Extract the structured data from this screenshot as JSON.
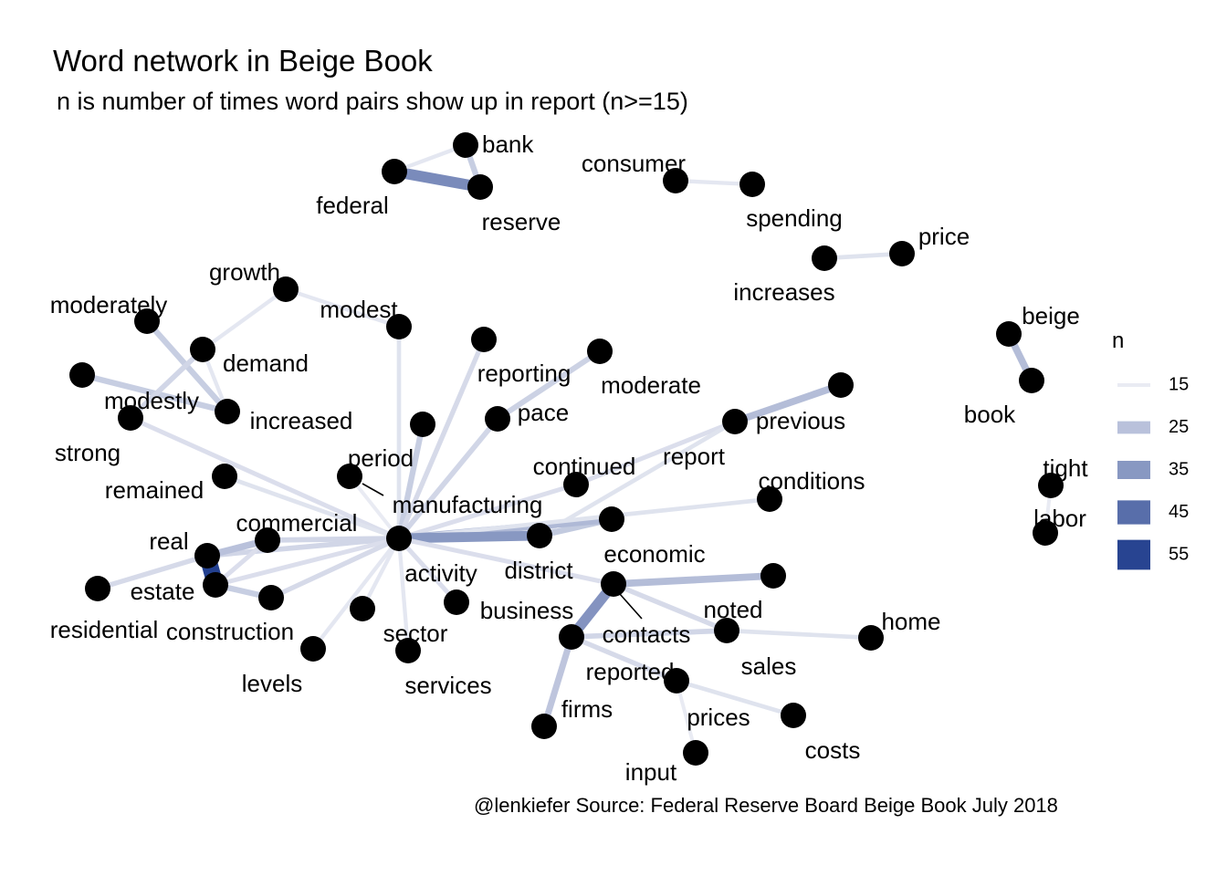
{
  "title": "Word network in Beige Book",
  "subtitle": "n is number of times word pairs show up in report (n>=15)",
  "caption": "@lenkiefer Source: Federal Reserve Board Beige Book July 2018",
  "legend": {
    "title": "n",
    "entries": [
      15,
      25,
      35,
      45,
      55
    ],
    "color_low": "#e9ebf3",
    "color_high": "#23408f"
  },
  "nodes": [
    {
      "id": "bank"
    },
    {
      "id": "federal"
    },
    {
      "id": "reserve"
    },
    {
      "id": "consumer"
    },
    {
      "id": "spending"
    },
    {
      "id": "increases"
    },
    {
      "id": "price"
    },
    {
      "id": "beige"
    },
    {
      "id": "book"
    },
    {
      "id": "tight"
    },
    {
      "id": "labor"
    },
    {
      "id": "growth"
    },
    {
      "id": "modest"
    },
    {
      "id": "moderately"
    },
    {
      "id": "demand"
    },
    {
      "id": "modestly"
    },
    {
      "id": "increased"
    },
    {
      "id": "strong"
    },
    {
      "id": "remained"
    },
    {
      "id": "period"
    },
    {
      "id": "manufacturing"
    },
    {
      "id": "reporting"
    },
    {
      "id": "moderate"
    },
    {
      "id": "pace"
    },
    {
      "id": "continued"
    },
    {
      "id": "report"
    },
    {
      "id": "previous"
    },
    {
      "id": "conditions"
    },
    {
      "id": "commercial"
    },
    {
      "id": "real"
    },
    {
      "id": "estate"
    },
    {
      "id": "residential"
    },
    {
      "id": "construction"
    },
    {
      "id": "activity"
    },
    {
      "id": "district"
    },
    {
      "id": "economic"
    },
    {
      "id": "levels"
    },
    {
      "id": "sector"
    },
    {
      "id": "services"
    },
    {
      "id": "business"
    },
    {
      "id": "contacts"
    },
    {
      "id": "noted"
    },
    {
      "id": "home"
    },
    {
      "id": "sales"
    },
    {
      "id": "reported"
    },
    {
      "id": "firms"
    },
    {
      "id": "prices"
    },
    {
      "id": "costs"
    },
    {
      "id": "input"
    }
  ],
  "edges": [
    {
      "from": "federal",
      "to": "reserve",
      "n": 38
    },
    {
      "from": "bank",
      "to": "reserve",
      "n": 22
    },
    {
      "from": "bank",
      "to": "federal",
      "n": 16
    },
    {
      "from": "consumer",
      "to": "spending",
      "n": 16
    },
    {
      "from": "price",
      "to": "increases",
      "n": 17
    },
    {
      "from": "beige",
      "to": "book",
      "n": 26
    },
    {
      "from": "tight",
      "to": "labor",
      "n": 15
    },
    {
      "from": "growth",
      "to": "modest",
      "n": 16
    },
    {
      "from": "modest",
      "to": "activity",
      "n": 17
    },
    {
      "from": "moderately",
      "to": "increased",
      "n": 22
    },
    {
      "from": "modestly",
      "to": "increased",
      "n": 22
    },
    {
      "from": "growth",
      "to": "demand",
      "n": 16
    },
    {
      "from": "demand",
      "to": "strong",
      "n": 20
    },
    {
      "from": "demand",
      "to": "increased",
      "n": 16
    },
    {
      "from": "strong",
      "to": "activity",
      "n": 18
    },
    {
      "from": "remained",
      "to": "activity",
      "n": 17
    },
    {
      "from": "period",
      "to": "activity",
      "n": 15
    },
    {
      "from": "manufacturing",
      "to": "activity",
      "n": 22
    },
    {
      "from": "reporting",
      "to": "activity",
      "n": 19
    },
    {
      "from": "moderate",
      "to": "pace",
      "n": 21
    },
    {
      "from": "pace",
      "to": "activity",
      "n": 20
    },
    {
      "from": "continued",
      "to": "activity",
      "n": 18
    },
    {
      "from": "report",
      "to": "previous",
      "n": 26
    },
    {
      "from": "report",
      "to": "continued",
      "n": 18
    },
    {
      "from": "report",
      "to": "district",
      "n": 17
    },
    {
      "from": "district",
      "to": "economic",
      "n": 23
    },
    {
      "from": "activity",
      "to": "economic",
      "n": 27
    },
    {
      "from": "activity",
      "to": "conditions",
      "n": 17
    },
    {
      "from": "activity",
      "to": "district",
      "n": 35
    },
    {
      "from": "activity",
      "to": "commercial",
      "n": 20
    },
    {
      "from": "activity",
      "to": "real",
      "n": 20
    },
    {
      "from": "activity",
      "to": "estate",
      "n": 18
    },
    {
      "from": "activity",
      "to": "construction",
      "n": 19
    },
    {
      "from": "activity",
      "to": "levels",
      "n": 16
    },
    {
      "from": "activity",
      "to": "sector",
      "n": 16
    },
    {
      "from": "activity",
      "to": "services",
      "n": 16
    },
    {
      "from": "activity",
      "to": "business",
      "n": 18
    },
    {
      "from": "activity",
      "to": "contacts",
      "n": 18
    },
    {
      "from": "real",
      "to": "estate",
      "n": 56
    },
    {
      "from": "commercial",
      "to": "real",
      "n": 25
    },
    {
      "from": "residential",
      "to": "real",
      "n": 19
    },
    {
      "from": "commercial",
      "to": "estate",
      "n": 18
    },
    {
      "from": "estate",
      "to": "construction",
      "n": 22
    },
    {
      "from": "contacts",
      "to": "reported",
      "n": 36
    },
    {
      "from": "contacts",
      "to": "noted",
      "n": 26
    },
    {
      "from": "contacts",
      "to": "sales",
      "n": 19
    },
    {
      "from": "reported",
      "to": "sales",
      "n": 20
    },
    {
      "from": "home",
      "to": "sales",
      "n": 17
    },
    {
      "from": "reported",
      "to": "firms",
      "n": 24
    },
    {
      "from": "reported",
      "to": "prices",
      "n": 19
    },
    {
      "from": "prices",
      "to": "costs",
      "n": 17
    },
    {
      "from": "prices",
      "to": "input",
      "n": 15
    }
  ]
}
